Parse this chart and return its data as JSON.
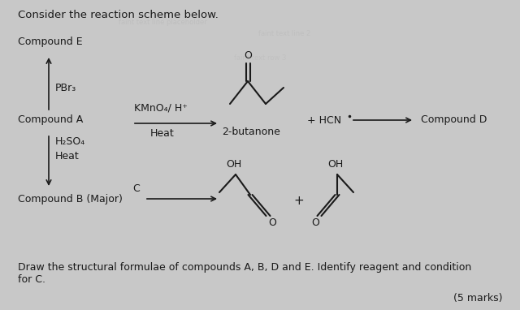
{
  "background_color": "#c8c8c8",
  "title": "Consider the reaction scheme below.",
  "text_color": "#1a1a1a",
  "arrow_color": "#1a1a1a",
  "compound_e_label": "Compound E",
  "compound_a_label": "Compound A",
  "compound_b_label": "Compound B (Major)",
  "compound_d_label": "Compound D",
  "pbr3_label": "PBr₃",
  "kmno4_label": "KMnO₄/ H⁺",
  "heat1_label": "Heat",
  "h2so4_label": "H₂SO₄",
  "heat2_label": "Heat",
  "c_label": "C",
  "butanone_label": "2-butanone",
  "hcn_label": "+ HCN",
  "plus_label": "+",
  "bottom_text1": "Draw the structural formulae of compounds A, B, D and E. Identify reagent and condition",
  "bottom_text2": "for C.",
  "marks_text": "(5 marks)"
}
